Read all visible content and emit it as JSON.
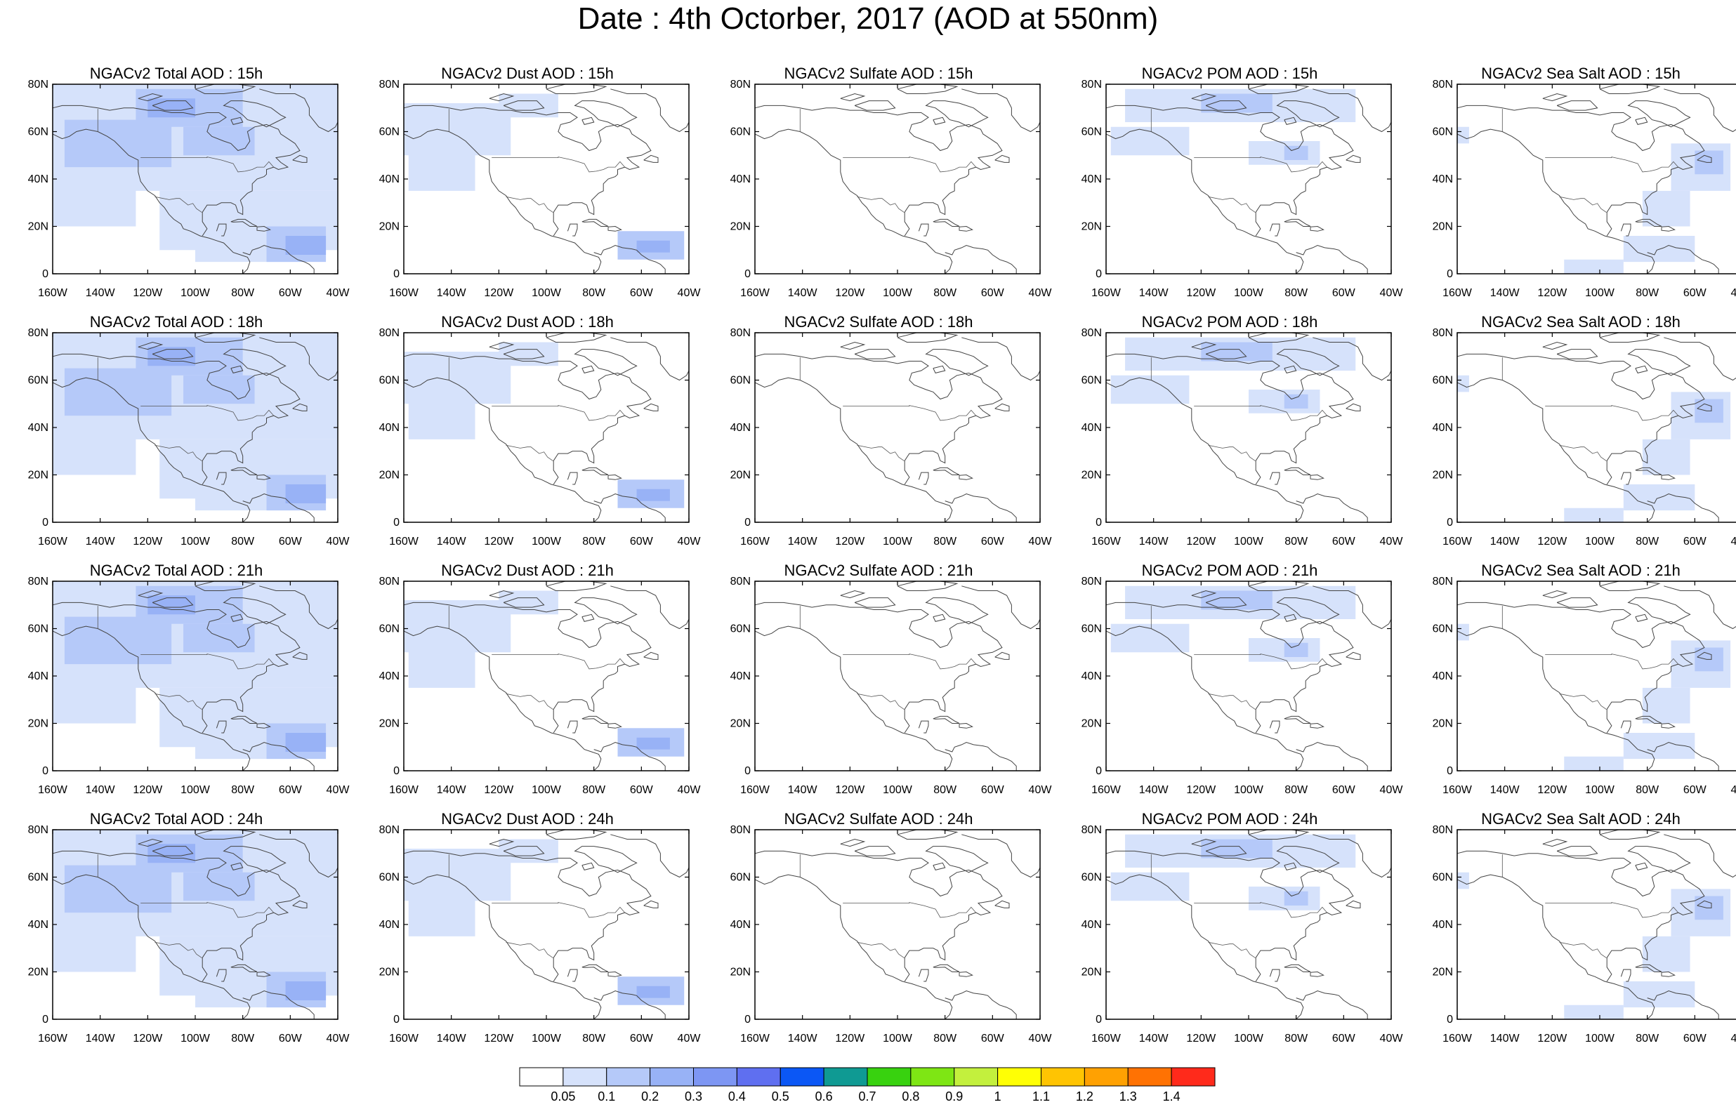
{
  "title": "Date : 4th Octorber, 2017 (AOD at 550nm)",
  "chart_data": {
    "type": "heatmap",
    "layout": {
      "rows": 4,
      "cols": 5
    },
    "variables": [
      "Total",
      "Dust",
      "Sulfate",
      "POM",
      "Sea Salt"
    ],
    "times": [
      "15h",
      "18h",
      "21h",
      "24h"
    ],
    "panel_titles": [
      [
        "NGACv2 Total AOD : 15h",
        "NGACv2 Dust AOD : 15h",
        "NGACv2 Sulfate AOD : 15h",
        "NGACv2 POM AOD : 15h",
        "NGACv2 Sea Salt AOD : 15h"
      ],
      [
        "NGACv2 Total AOD : 18h",
        "NGACv2 Dust AOD : 18h",
        "NGACv2 Sulfate AOD : 18h",
        "NGACv2 POM AOD : 18h",
        "NGACv2 Sea Salt AOD : 18h"
      ],
      [
        "NGACv2 Total AOD : 21h",
        "NGACv2 Dust AOD : 21h",
        "NGACv2 Sulfate AOD : 21h",
        "NGACv2 POM AOD : 21h",
        "NGACv2 Sea Salt AOD : 21h"
      ],
      [
        "NGACv2 Total AOD : 24h",
        "NGACv2 Dust AOD : 24h",
        "NGACv2 Sulfate AOD : 24h",
        "NGACv2 POM AOD : 24h",
        "NGACv2 Sea Salt  AOD : 24h"
      ]
    ],
    "x_ticks": [
      "160W",
      "140W",
      "120W",
      "100W",
      "80W",
      "60W",
      "40W"
    ],
    "y_ticks": [
      "0",
      "20N",
      "40N",
      "60N",
      "80N"
    ],
    "x_range": [
      -160,
      -40
    ],
    "y_range": [
      0,
      80
    ],
    "colorbar": {
      "levels": [
        "0.05",
        "0.1",
        "0.2",
        "0.3",
        "0.4",
        "0.5",
        "0.6",
        "0.7",
        "0.8",
        "0.9",
        "1",
        "1.1",
        "1.2",
        "1.3",
        "1.4"
      ],
      "colors": [
        "#ffffff",
        "#d6e2fb",
        "#b5c9f9",
        "#98b2f6",
        "#7d96f3",
        "#5f6ff0",
        "#0b57f5",
        "#0f9a93",
        "#38d20f",
        "#7ee614",
        "#c3f03d",
        "#ffff05",
        "#ffc402",
        "#ffa102",
        "#ff7203",
        "#ff2a1b"
      ]
    },
    "map_projection": "cylindrical-equidistant",
    "map_region": "North America",
    "grid": false
  }
}
